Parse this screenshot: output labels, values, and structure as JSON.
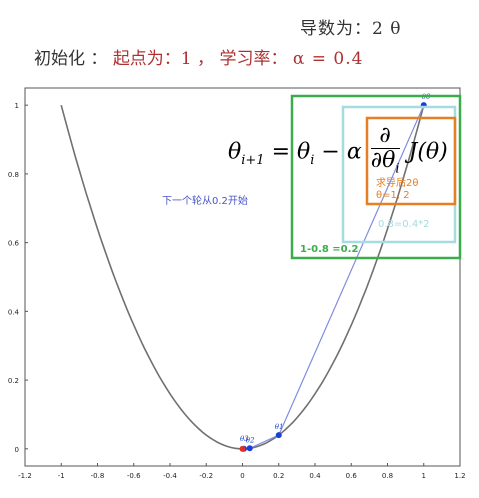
{
  "header": {
    "derivative_label": "导数为：2 θ",
    "init_label": "初始化 ：",
    "start_label": "起点为：1 ，",
    "lr_label": "学习率：",
    "lr_value": "α = 0.4"
  },
  "formula": {
    "lhs": "θ",
    "lhs_sub": "i+1",
    "eq": " = θ",
    "rhs_sub": "i",
    "minus": " − α",
    "frac_num": "∂",
    "frac_den": "∂θ",
    "frac_den_sub": "i",
    "func": "J(θ)"
  },
  "annotations": {
    "next_round": "下一个轮从0.2开始",
    "deriv_2theta": "求导后2θ",
    "theta_value": "θ=1, 2",
    "step_product": "0.8=0.4*2",
    "subtraction": "1-0.8 =0.2"
  },
  "point_labels": [
    "θ0",
    "θ1",
    "θ2",
    "θ3"
  ],
  "colors": {
    "curve": "#707070",
    "path": "#7f8ddf",
    "point": "#1a3fd6",
    "point_red": "#e03020",
    "green_box": "#3aad4a",
    "cyan_box": "#a6dbe0",
    "orange_box": "#e67e22",
    "blue_text": "#4a55c8"
  },
  "chart_data": {
    "type": "line",
    "function": "y = x^2",
    "x_ticks": [
      "-1.2",
      "-1",
      "-0.8",
      "-0.6",
      "-0.4",
      "-0.2",
      "0",
      "0.2",
      "0.4",
      "0.6",
      "0.8",
      "1",
      "1.2"
    ],
    "y_ticks": [
      "0",
      "0.2",
      "0.4",
      "0.6",
      "0.8",
      "1"
    ],
    "xlim": [
      -1.2,
      1.2
    ],
    "ylim": [
      -0.05,
      1.05
    ],
    "curve_x_range": [
      -1,
      1
    ],
    "gradient_path": [
      {
        "x": 1,
        "y": 1
      },
      {
        "x": 0.2,
        "y": 0.04
      },
      {
        "x": 0.04,
        "y": 0.0016
      },
      {
        "x": 0.008,
        "y": 6e-05
      },
      {
        "x": 0,
        "y": 0
      }
    ]
  }
}
